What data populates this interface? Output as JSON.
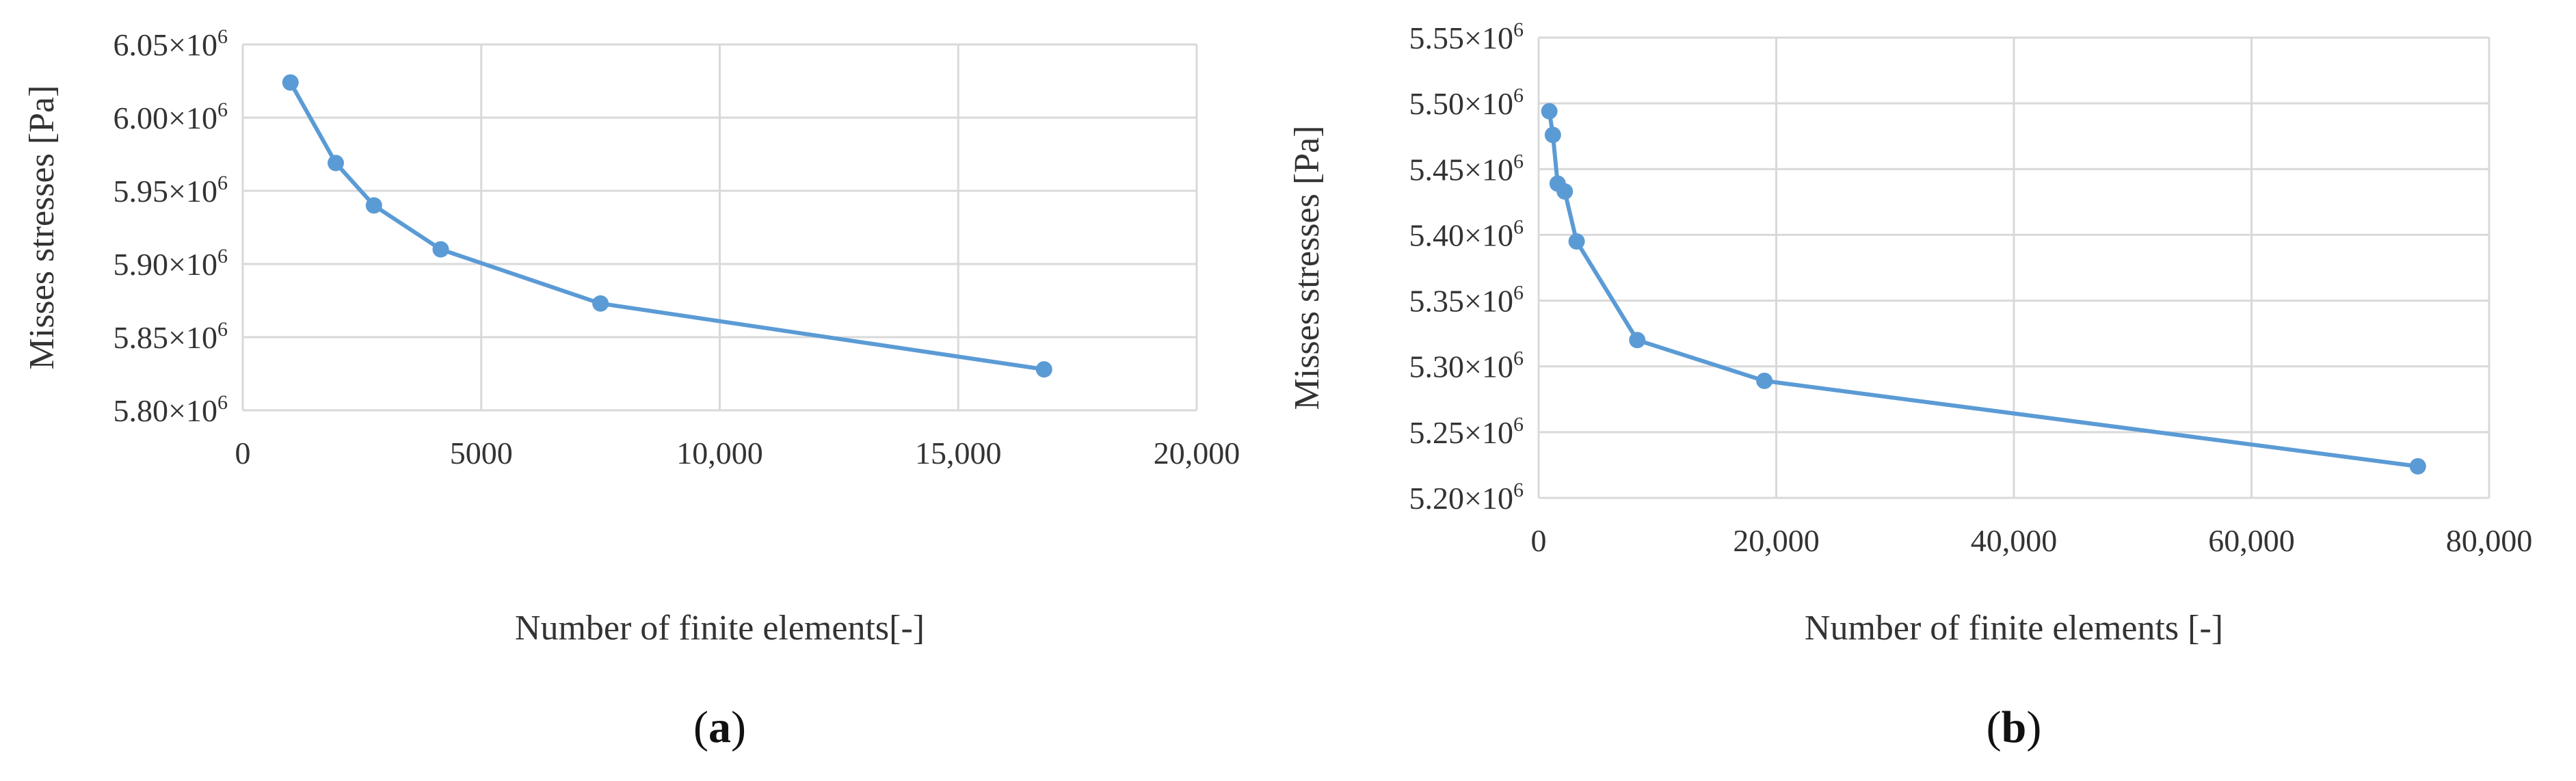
{
  "chart_data": [
    {
      "type": "line",
      "panel_label": "a",
      "xlabel": "Number of finite elements[-]",
      "ylabel": "Misses stresses [Pa]",
      "xlim": [
        0,
        20000
      ],
      "ylim": [
        5800000,
        6050000
      ],
      "x_ticks": [
        "0",
        "5000",
        "10,000",
        "15,000",
        "20,000"
      ],
      "x_tick_values": [
        0,
        5000,
        10000,
        15000,
        20000
      ],
      "y_tick_values": [
        5800000,
        5850000,
        5900000,
        5950000,
        6000000,
        6050000
      ],
      "y_tick_mantissas": [
        "5.80",
        "5.85",
        "5.90",
        "5.95",
        "6.00",
        "6.05"
      ],
      "y_tick_base": "×10",
      "y_tick_exp": "6",
      "grid": true,
      "series": [
        {
          "color": "#5b9bd5",
          "x": [
            1000,
            1950,
            2750,
            4150,
            7500,
            16800
          ],
          "y": [
            6024000,
            5969000,
            5940000,
            5910000,
            5873000,
            5828000
          ]
        }
      ]
    },
    {
      "type": "line",
      "panel_label": "b",
      "xlabel": "Number of finite elements [-]",
      "ylabel": "Misses stresses [Pa]",
      "xlim": [
        0,
        80000
      ],
      "ylim": [
        5200000,
        5550000
      ],
      "x_ticks": [
        "0",
        "20,000",
        "40,000",
        "60,000",
        "80,000"
      ],
      "x_tick_values": [
        0,
        20000,
        40000,
        60000,
        80000
      ],
      "y_tick_values": [
        5200000,
        5250000,
        5300000,
        5350000,
        5400000,
        5450000,
        5500000,
        5550000
      ],
      "y_tick_mantissas": [
        "5.20",
        "5.25",
        "5.30",
        "5.35",
        "5.40",
        "5.45",
        "5.50",
        "5.55"
      ],
      "y_tick_base": "×10",
      "y_tick_exp": "6",
      "grid": true,
      "series": [
        {
          "color": "#5b9bd5",
          "x": [
            900,
            1200,
            1600,
            2200,
            3200,
            8300,
            19000,
            74000
          ],
          "y": [
            5494000,
            5476000,
            5439000,
            5433000,
            5395000,
            5320000,
            5289000,
            5224000
          ]
        }
      ]
    }
  ]
}
